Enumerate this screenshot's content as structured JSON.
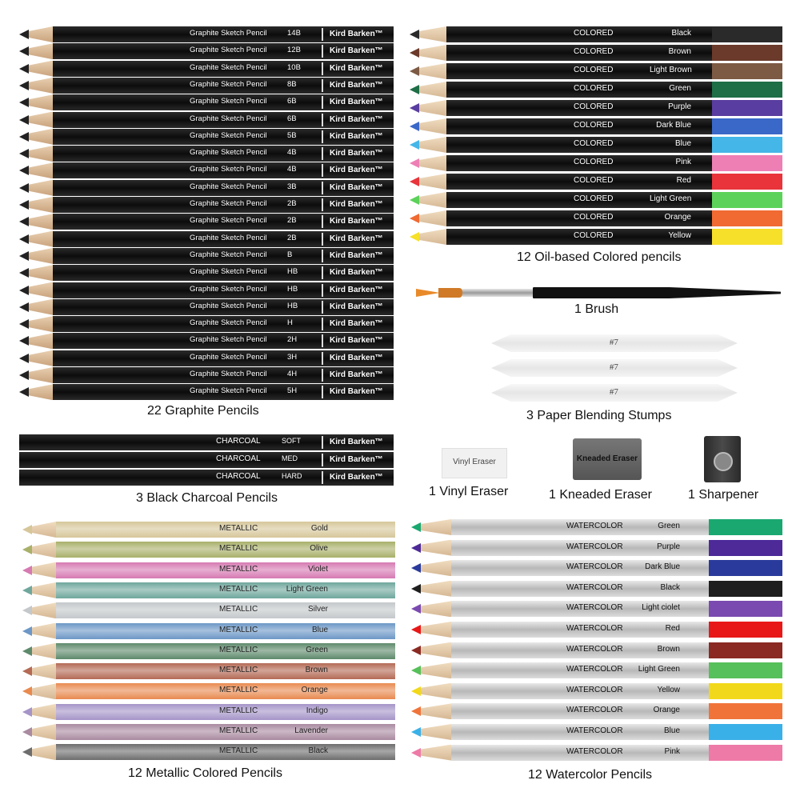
{
  "brand": "Kird Barken™",
  "graphite": {
    "caption": "22 Graphite Pencils",
    "label": "Graphite Sketch Pencil",
    "grades": [
      "14B",
      "12B",
      "10B",
      "8B",
      "6B",
      "6B",
      "5B",
      "4B",
      "4B",
      "3B",
      "2B",
      "2B",
      "2B",
      "B",
      "HB",
      "HB",
      "HB",
      "H",
      "2H",
      "3H",
      "4H",
      "5H"
    ]
  },
  "charcoal": {
    "caption": "3 Black Charcoal Pencils",
    "label": "CHARCOAL",
    "grades": [
      "SOFT",
      "MED",
      "HARD"
    ]
  },
  "colored": {
    "caption": "12 Oil-based Colored pencils",
    "label": "COLORED",
    "items": [
      {
        "name": "Black",
        "color": "#2a2a2a"
      },
      {
        "name": "Brown",
        "color": "#6b3a2a"
      },
      {
        "name": "Light Brown",
        "color": "#7d5a44"
      },
      {
        "name": "Green",
        "color": "#1e6e46"
      },
      {
        "name": "Purple",
        "color": "#5a3da0"
      },
      {
        "name": "Dark Blue",
        "color": "#3a68c8"
      },
      {
        "name": "Blue",
        "color": "#45b6e8"
      },
      {
        "name": "Pink",
        "color": "#ee7fb5"
      },
      {
        "name": "Red",
        "color": "#e8343a"
      },
      {
        "name": "Light Green",
        "color": "#5cd25a"
      },
      {
        "name": "Orange",
        "color": "#f06a32"
      },
      {
        "name": "Yellow",
        "color": "#f6e02a"
      }
    ]
  },
  "brush": {
    "caption": "1 Brush"
  },
  "stumps": {
    "caption": "3  Paper Blending Stumps",
    "label": "#7",
    "count": 3
  },
  "vinyl": {
    "caption": "1 Vinyl Eraser",
    "label": "Vinyl Eraser"
  },
  "kneaded": {
    "caption": "1 Kneaded Eraser",
    "label": "Kneaded Eraser"
  },
  "sharpener": {
    "caption": "1 Sharpener"
  },
  "metallic": {
    "caption": "12 Metallic Colored Pencils",
    "label": "METALLIC",
    "items": [
      {
        "name": "Gold",
        "color": "#d6c79a"
      },
      {
        "name": "Olive",
        "color": "#a9b06a"
      },
      {
        "name": "Violet",
        "color": "#d67ab2"
      },
      {
        "name": "Light Green",
        "color": "#6fa79d"
      },
      {
        "name": "Silver",
        "color": "#c4c8ca"
      },
      {
        "name": "Blue",
        "color": "#6c97c6"
      },
      {
        "name": "Green",
        "color": "#5e8a6c"
      },
      {
        "name": "Brown",
        "color": "#b46a55"
      },
      {
        "name": "Orange",
        "color": "#e88a50"
      },
      {
        "name": "Indigo",
        "color": "#a594c8"
      },
      {
        "name": "Lavender",
        "color": "#a98aa0"
      },
      {
        "name": "Black",
        "color": "#6d6d6d"
      }
    ]
  },
  "watercolor": {
    "caption": "12 Watercolor Pencils",
    "label": "WATERCOLOR",
    "items": [
      {
        "name": "Green",
        "color": "#1aa870"
      },
      {
        "name": "Purple",
        "color": "#4d2a98"
      },
      {
        "name": "Dark Blue",
        "color": "#2a3a9c"
      },
      {
        "name": "Black",
        "color": "#1e1e1e"
      },
      {
        "name": "Light ciolet",
        "color": "#7a4ab0"
      },
      {
        "name": "Red",
        "color": "#e81818"
      },
      {
        "name": "Brown",
        "color": "#8a2a22"
      },
      {
        "name": "Light Green",
        "color": "#56c05a"
      },
      {
        "name": "Yellow",
        "color": "#f2d81a"
      },
      {
        "name": "Orange",
        "color": "#f0743a"
      },
      {
        "name": "Blue",
        "color": "#3ab0e8"
      },
      {
        "name": "Pink",
        "color": "#ee7aa8"
      }
    ]
  }
}
